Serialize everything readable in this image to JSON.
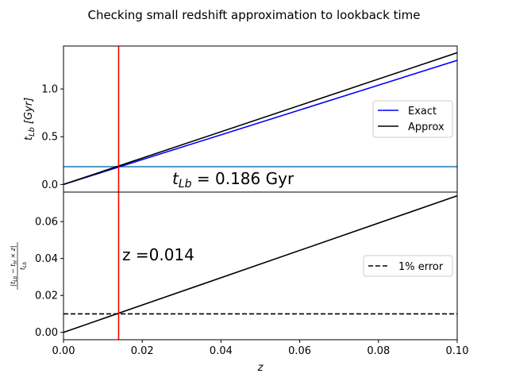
{
  "chart_data": [
    {
      "type": "line",
      "title": "Checking small redshift approximation to lookback time",
      "ylabel_main": "t",
      "ylabel_sub": "Lb",
      "ylabel_unit": "[Gyr]",
      "xlim": [
        0,
        0.1
      ],
      "ylim": [
        -0.08,
        1.45
      ],
      "yticks": [
        {
          "value": 0.0,
          "label": "0.0"
        },
        {
          "value": 0.5,
          "label": "0.5"
        },
        {
          "value": 1.0,
          "label": "1.0"
        }
      ],
      "grid": false,
      "legend_position": "center-right",
      "series": [
        {
          "name": "Exact",
          "color": "#0000ff",
          "x": [
            0,
            0.1
          ],
          "y": [
            0,
            1.3
          ]
        },
        {
          "name": "Approx",
          "color": "#000000",
          "x": [
            0,
            0.1
          ],
          "y": [
            0,
            1.38
          ]
        }
      ],
      "hline": {
        "y": 0.186,
        "color": "#1f77b4"
      },
      "vline": {
        "x": 0.014,
        "color": "#ff0000"
      },
      "annotation": {
        "prefix": "t",
        "sub": "Lb",
        "suffix": " = 0.186 Gyr",
        "x": 0.0275,
        "y": -0.05
      }
    },
    {
      "type": "line",
      "ylabel": "|t_Lb − t_H × z| / t_Lb",
      "xlabel": "z",
      "xlim": [
        0,
        0.1
      ],
      "ylim": [
        -0.004,
        0.076
      ],
      "xticks": [
        {
          "value": 0.0,
          "label": "0.00"
        },
        {
          "value": 0.02,
          "label": "0.02"
        },
        {
          "value": 0.04,
          "label": "0.04"
        },
        {
          "value": 0.06,
          "label": "0.06"
        },
        {
          "value": 0.08,
          "label": "0.08"
        },
        {
          "value": 0.1,
          "label": "0.10"
        }
      ],
      "yticks": [
        {
          "value": 0.0,
          "label": "0.00"
        },
        {
          "value": 0.02,
          "label": "0.02"
        },
        {
          "value": 0.04,
          "label": "0.04"
        },
        {
          "value": 0.06,
          "label": "0.06"
        }
      ],
      "grid": false,
      "legend_position": "center-right",
      "series": [
        {
          "color": "#000000",
          "x": [
            0,
            0.1
          ],
          "y": [
            0,
            0.074
          ]
        },
        {
          "name": "1% error",
          "color": "#000000",
          "dashed": true,
          "x": [
            0,
            0.1
          ],
          "y": [
            0.01,
            0.01
          ]
        }
      ],
      "vline": {
        "x": 0.014,
        "color": "#ff0000"
      },
      "annotation": {
        "text": "z =0.014",
        "x": 0.015,
        "y": 0.04
      }
    }
  ]
}
